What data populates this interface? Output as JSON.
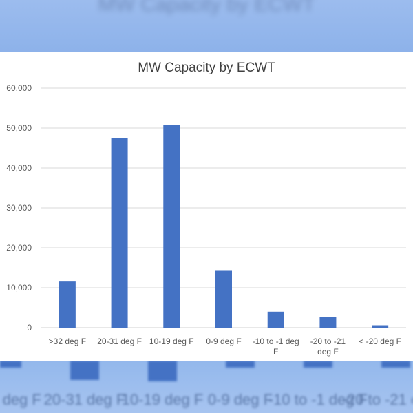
{
  "chart_data": {
    "type": "bar",
    "title": "MW Capacity by ECWT",
    "xlabel": "",
    "ylabel": "",
    "categories": [
      ">32 deg F",
      "20-31 deg F",
      "10-19 deg F",
      "0-9 deg F",
      "-10 to -1 deg F",
      "-20 to -21 deg F",
      "< -20 deg F"
    ],
    "category_lines": [
      [
        ">32 deg F"
      ],
      [
        "20-31 deg F"
      ],
      [
        "10-19 deg F"
      ],
      [
        "0-9 deg F"
      ],
      [
        "-10 to -1 deg",
        "F"
      ],
      [
        "-20 to -21",
        "deg F"
      ],
      [
        "< -20 deg F"
      ]
    ],
    "values": [
      11700,
      47500,
      50800,
      14400,
      4000,
      2600,
      600
    ],
    "ylim": [
      0,
      60000
    ],
    "yticks": [
      "0",
      "10,000",
      "20,000",
      "30,000",
      "40,000",
      "50,000",
      "60,000"
    ],
    "grid": true,
    "legend": "none",
    "bar_color": "#4472c4"
  }
}
